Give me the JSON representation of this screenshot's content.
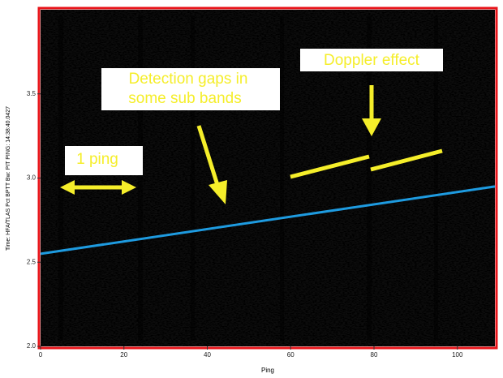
{
  "chart_data": {
    "type": "line",
    "ylabel": "Time: HFA/TLAS Pct BPTT Bw: PIT PING: 14:38:40.0427",
    "xlabel": "Ping",
    "x": [
      0,
      109
    ],
    "series": [
      {
        "color": "#1e9be0",
        "values": [
          2.55,
          2.95
        ]
      }
    ],
    "xlim": [
      0,
      109
    ],
    "xticks": [
      0,
      20,
      40,
      60,
      80,
      100
    ],
    "ylim": [
      2.0,
      4.0
    ],
    "yticks": [
      {
        "value": 2.0,
        "label": "2.0"
      },
      2.5,
      {
        "value": 3.0,
        "label": "3.0"
      },
      3.5
    ],
    "annotations": [
      "Doppler effect",
      "Detection gaps in",
      "some sub bands",
      "1 ping"
    ]
  }
}
